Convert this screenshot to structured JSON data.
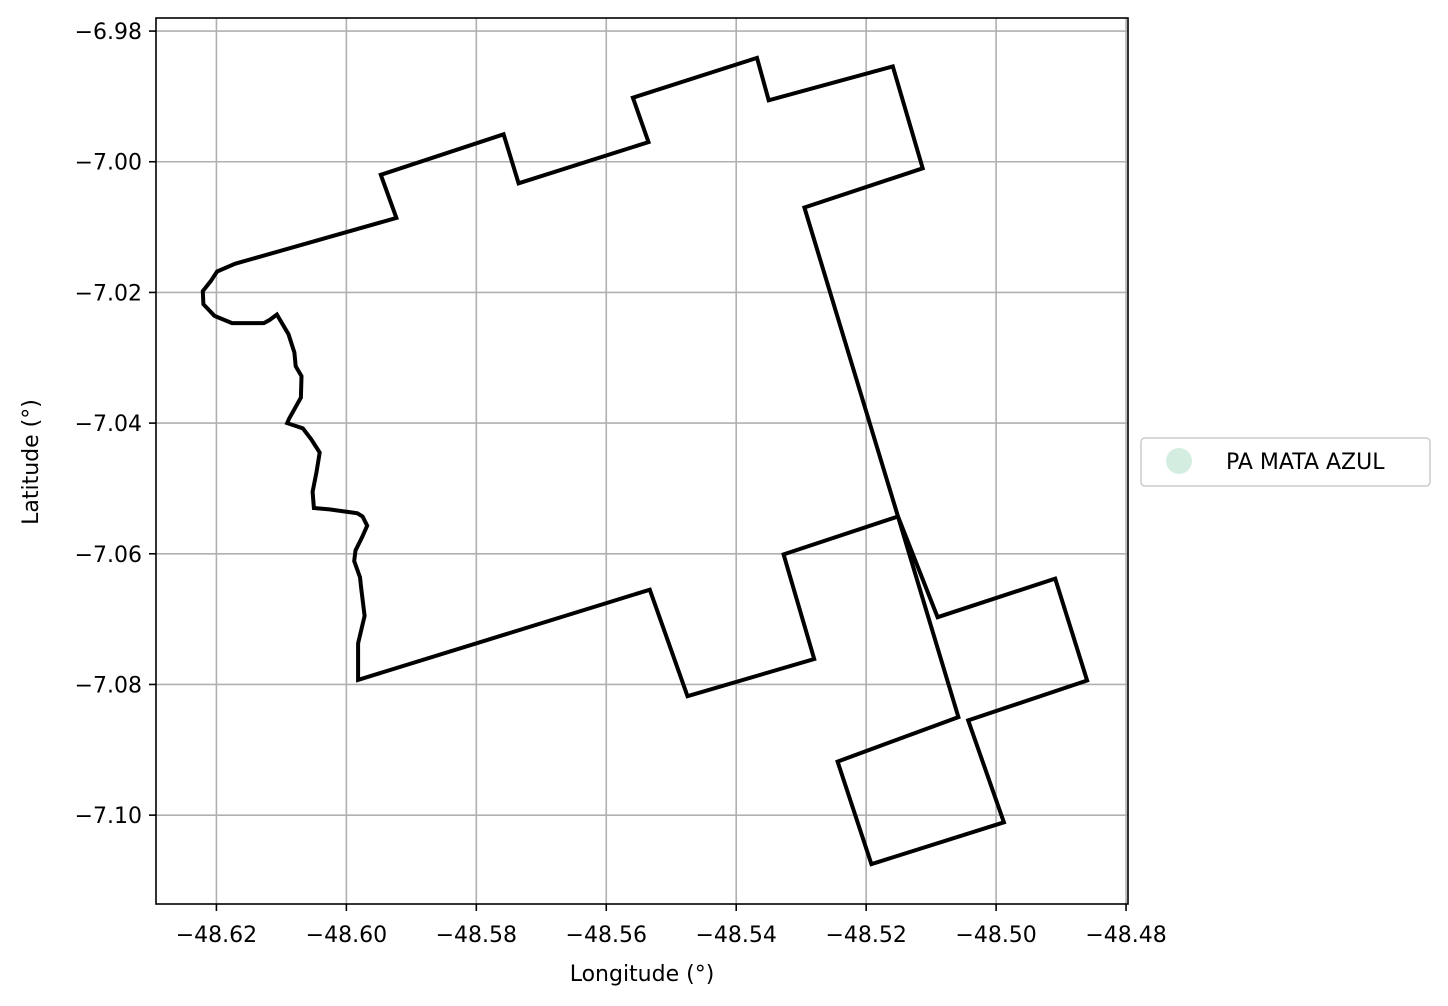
{
  "chart_data": {
    "type": "map",
    "title": "",
    "xlabel": "Longitude (°)",
    "ylabel": "Latitude (°)",
    "xlim": [
      -48.6293,
      -48.4797
    ],
    "ylim": [
      -7.1136,
      -6.978
    ],
    "xticks": [
      -48.62,
      -48.6,
      -48.58,
      -48.56,
      -48.54,
      -48.52,
      -48.5,
      -48.48
    ],
    "xtick_labels": [
      "−48.62",
      "−48.60",
      "−48.58",
      "−48.56",
      "−48.54",
      "−48.52",
      "−48.50",
      "−48.48"
    ],
    "yticks": [
      -6.98,
      -7.0,
      -7.02,
      -7.04,
      -7.06,
      -7.08,
      -7.1
    ],
    "ytick_labels": [
      "−6.98",
      "−7.00",
      "−7.02",
      "−7.04",
      "−7.06",
      "−7.08",
      "−7.10"
    ],
    "grid": true,
    "legend_position": "right",
    "series": [
      {
        "name": "PA MATA AZUL",
        "marker_color": "#d3ede1",
        "edge_color": "#000000",
        "polygon": [
          [
            -48.6199,
            -7.0168
          ],
          [
            -48.6171,
            -7.0156
          ],
          [
            -48.5923,
            -7.0086
          ],
          [
            -48.5947,
            -7.002
          ],
          [
            -48.5758,
            -6.9958
          ],
          [
            -48.5735,
            -7.0033
          ],
          [
            -48.5535,
            -6.997
          ],
          [
            -48.5559,
            -6.9902
          ],
          [
            -48.5368,
            -6.9841
          ],
          [
            -48.535,
            -6.9906
          ],
          [
            -48.5159,
            -6.9854
          ],
          [
            -48.5113,
            -7.001
          ],
          [
            -48.5295,
            -7.007
          ],
          [
            -48.5151,
            -7.0543
          ],
          [
            -48.5327,
            -7.0601
          ],
          [
            -48.528,
            -7.0761
          ],
          [
            -48.5475,
            -7.0818
          ],
          [
            -48.5533,
            -7.0655
          ],
          [
            -48.5982,
            -7.0793
          ],
          [
            -48.5982,
            -7.0737
          ],
          [
            -48.5972,
            -7.0695
          ],
          [
            -48.5977,
            -7.0654
          ],
          [
            -48.5979,
            -7.0636
          ],
          [
            -48.5988,
            -7.0611
          ],
          [
            -48.5986,
            -7.0595
          ],
          [
            -48.5976,
            -7.0575
          ],
          [
            -48.5968,
            -7.0557
          ],
          [
            -48.5975,
            -7.0543
          ],
          [
            -48.5983,
            -7.0538
          ],
          [
            -48.599,
            -7.0537
          ],
          [
            -48.6026,
            -7.0532
          ],
          [
            -48.605,
            -7.053
          ],
          [
            -48.6052,
            -7.0505
          ],
          [
            -48.6046,
            -7.0475
          ],
          [
            -48.6041,
            -7.0445
          ],
          [
            -48.6054,
            -7.0425
          ],
          [
            -48.6067,
            -7.0408
          ],
          [
            -48.6091,
            -7.04
          ],
          [
            -48.6088,
            -7.0393
          ],
          [
            -48.607,
            -7.0361
          ],
          [
            -48.6069,
            -7.0328
          ],
          [
            -48.6078,
            -7.0313
          ],
          [
            -48.608,
            -7.0292
          ],
          [
            -48.6089,
            -7.0264
          ],
          [
            -48.6107,
            -7.0234
          ],
          [
            -48.6118,
            -7.0242
          ],
          [
            -48.6127,
            -7.0247
          ],
          [
            -48.6176,
            -7.0247
          ],
          [
            -48.6203,
            -7.0236
          ],
          [
            -48.622,
            -7.0218
          ],
          [
            -48.6221,
            -7.0198
          ],
          [
            -48.6209,
            -7.0183
          ],
          [
            -48.6199,
            -7.0168
          ]
        ],
        "extra_polygons": [
          [
            [
              -48.5151,
              -7.0543
            ],
            [
              -48.509,
              -7.0697
            ],
            [
              -48.4909,
              -7.0638
            ],
            [
              -48.486,
              -7.0794
            ],
            [
              -48.5043,
              -7.0855
            ],
            [
              -48.4988,
              -7.1011
            ],
            [
              -48.5192,
              -7.1075
            ],
            [
              -48.5244,
              -7.0918
            ],
            [
              -48.5058,
              -7.085
            ],
            [
              -48.5151,
              -7.0543
            ]
          ]
        ]
      }
    ]
  }
}
